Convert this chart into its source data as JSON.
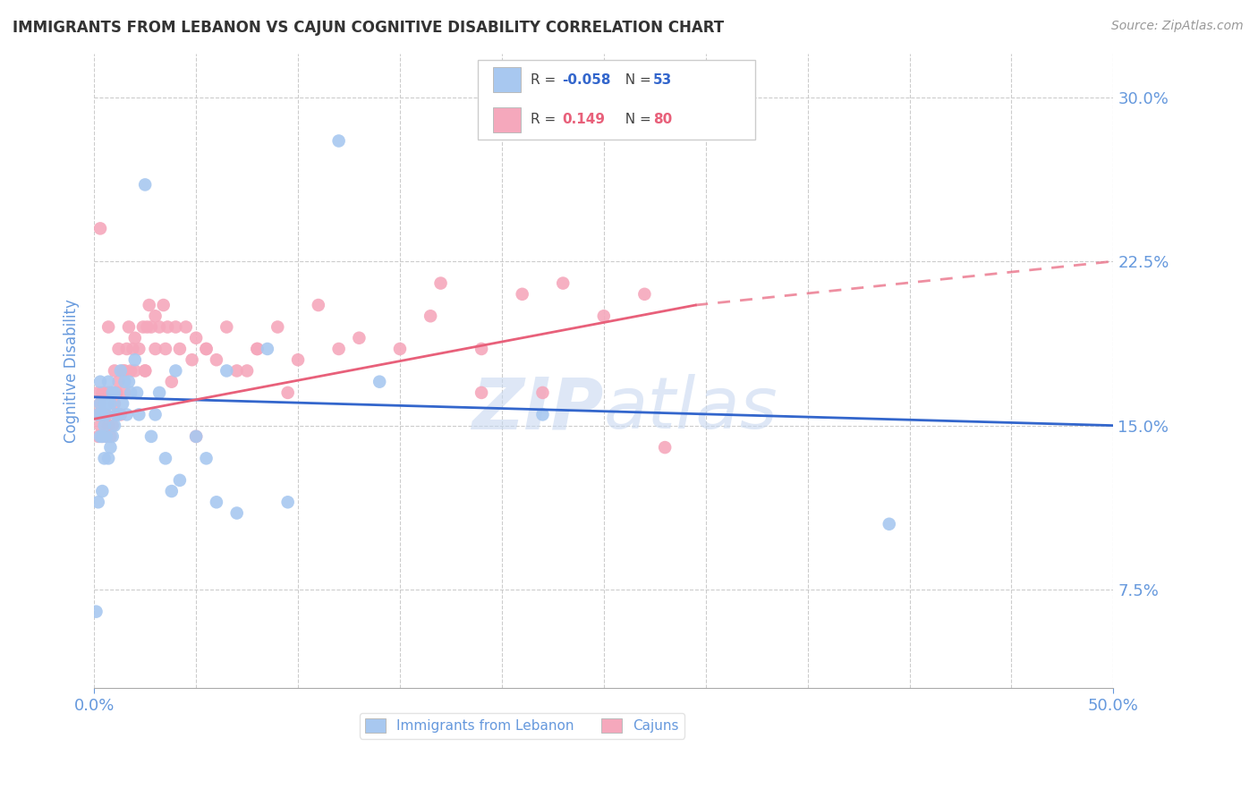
{
  "title": "IMMIGRANTS FROM LEBANON VS CAJUN COGNITIVE DISABILITY CORRELATION CHART",
  "source": "Source: ZipAtlas.com",
  "ylabel": "Cognitive Disability",
  "legend_label1": "Immigrants from Lebanon",
  "legend_label2": "Cajuns",
  "R1": "-0.058",
  "N1": "53",
  "R2": "0.149",
  "N2": "80",
  "xlim": [
    0.0,
    0.5
  ],
  "ylim": [
    0.03,
    0.32
  ],
  "yticks": [
    0.075,
    0.15,
    0.225,
    0.3
  ],
  "ytick_labels": [
    "7.5%",
    "15.0%",
    "22.5%",
    "30.0%"
  ],
  "xtick_left_label": "0.0%",
  "xtick_right_label": "50.0%",
  "blue_color": "#A8C8F0",
  "pink_color": "#F5A8BC",
  "blue_line_color": "#3366CC",
  "pink_line_color": "#E8607A",
  "axis_label_color": "#6699DD",
  "title_color": "#333333",
  "grid_color": "#CCCCCC",
  "watermark_color": "#C8D8F0",
  "blue_scatter_x": [
    0.001,
    0.002,
    0.003,
    0.003,
    0.004,
    0.004,
    0.005,
    0.005,
    0.006,
    0.006,
    0.007,
    0.007,
    0.007,
    0.008,
    0.008,
    0.009,
    0.009,
    0.01,
    0.01,
    0.011,
    0.012,
    0.013,
    0.014,
    0.015,
    0.016,
    0.017,
    0.018,
    0.02,
    0.021,
    0.022,
    0.025,
    0.028,
    0.03,
    0.032,
    0.035,
    0.038,
    0.04,
    0.042,
    0.05,
    0.055,
    0.06,
    0.065,
    0.07,
    0.085,
    0.095,
    0.12,
    0.14,
    0.22,
    0.39,
    0.002,
    0.003,
    0.004,
    0.005
  ],
  "blue_scatter_y": [
    0.065,
    0.155,
    0.16,
    0.17,
    0.12,
    0.155,
    0.135,
    0.16,
    0.145,
    0.155,
    0.135,
    0.16,
    0.17,
    0.14,
    0.16,
    0.145,
    0.165,
    0.15,
    0.165,
    0.155,
    0.155,
    0.175,
    0.16,
    0.17,
    0.155,
    0.17,
    0.165,
    0.18,
    0.165,
    0.155,
    0.26,
    0.145,
    0.155,
    0.165,
    0.135,
    0.12,
    0.175,
    0.125,
    0.145,
    0.135,
    0.115,
    0.175,
    0.11,
    0.185,
    0.115,
    0.28,
    0.17,
    0.155,
    0.105,
    0.115,
    0.145,
    0.145,
    0.15
  ],
  "pink_scatter_x": [
    0.001,
    0.002,
    0.002,
    0.003,
    0.003,
    0.004,
    0.004,
    0.005,
    0.005,
    0.006,
    0.006,
    0.007,
    0.007,
    0.008,
    0.008,
    0.009,
    0.009,
    0.01,
    0.01,
    0.011,
    0.011,
    0.012,
    0.013,
    0.014,
    0.015,
    0.016,
    0.017,
    0.018,
    0.019,
    0.02,
    0.022,
    0.024,
    0.025,
    0.026,
    0.027,
    0.028,
    0.03,
    0.032,
    0.034,
    0.036,
    0.038,
    0.04,
    0.042,
    0.045,
    0.048,
    0.05,
    0.055,
    0.06,
    0.065,
    0.07,
    0.08,
    0.09,
    0.1,
    0.11,
    0.13,
    0.15,
    0.17,
    0.19,
    0.21,
    0.23,
    0.25,
    0.27,
    0.003,
    0.007,
    0.012,
    0.02,
    0.03,
    0.05,
    0.08,
    0.015,
    0.025,
    0.035,
    0.055,
    0.075,
    0.095,
    0.12,
    0.165,
    0.28,
    0.22,
    0.19
  ],
  "pink_scatter_y": [
    0.155,
    0.145,
    0.165,
    0.15,
    0.16,
    0.145,
    0.165,
    0.155,
    0.165,
    0.145,
    0.155,
    0.15,
    0.165,
    0.145,
    0.165,
    0.15,
    0.165,
    0.16,
    0.175,
    0.155,
    0.165,
    0.17,
    0.155,
    0.175,
    0.175,
    0.185,
    0.195,
    0.175,
    0.185,
    0.19,
    0.185,
    0.195,
    0.175,
    0.195,
    0.205,
    0.195,
    0.185,
    0.195,
    0.205,
    0.195,
    0.17,
    0.195,
    0.185,
    0.195,
    0.18,
    0.145,
    0.185,
    0.18,
    0.195,
    0.175,
    0.185,
    0.195,
    0.18,
    0.205,
    0.19,
    0.185,
    0.215,
    0.185,
    0.21,
    0.215,
    0.2,
    0.21,
    0.24,
    0.195,
    0.185,
    0.175,
    0.2,
    0.19,
    0.185,
    0.165,
    0.175,
    0.185,
    0.185,
    0.175,
    0.165,
    0.185,
    0.2,
    0.14,
    0.165,
    0.165
  ],
  "blue_line_x0": 0.0,
  "blue_line_x1": 0.5,
  "blue_line_y0": 0.163,
  "blue_line_y1": 0.15,
  "pink_line_solid_x0": 0.0,
  "pink_line_solid_x1": 0.295,
  "pink_line_y0": 0.153,
  "pink_line_y1": 0.205,
  "pink_line_dashed_x0": 0.295,
  "pink_line_dashed_x1": 0.5,
  "pink_line_y_dash_end": 0.225
}
